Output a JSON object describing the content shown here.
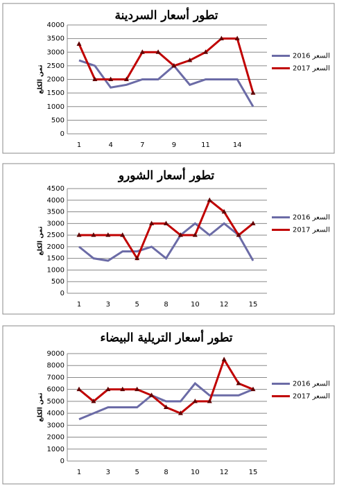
{
  "chart_data": [
    {
      "type": "line",
      "title": "تطور أسعار السردينة",
      "y_label": "ثمن الكلغ",
      "categories": [
        "1",
        null,
        "4",
        null,
        "7",
        null,
        "9",
        null,
        "11",
        null,
        "14",
        null
      ],
      "ylim": [
        0,
        4000
      ],
      "yticks": [
        0,
        500,
        1000,
        1500,
        2000,
        2500,
        3000,
        3500,
        4000
      ],
      "grid": true,
      "series": [
        {
          "name": "السعر 2016",
          "color": "#6b6ba6",
          "values": [
            2700,
            2500,
            1700,
            1800,
            2000,
            2000,
            2500,
            1800,
            2000,
            2000,
            2000,
            1000
          ]
        },
        {
          "name": "السعر 2017",
          "color": "#c00000",
          "values": [
            3300,
            2000,
            2000,
            2000,
            3000,
            3000,
            2500,
            2700,
            3000,
            3500,
            3500,
            1500
          ]
        }
      ]
    },
    {
      "type": "line",
      "title": "تطور أسعار الشورو",
      "y_label": "ثمن الكلغ",
      "categories": [
        "1",
        null,
        "3",
        null,
        "5",
        null,
        "8",
        null,
        "10",
        null,
        "12",
        null,
        "15"
      ],
      "ylim": [
        0,
        4500
      ],
      "yticks": [
        0,
        500,
        1000,
        1500,
        2000,
        2500,
        3000,
        3500,
        4000,
        4500
      ],
      "grid": true,
      "series": [
        {
          "name": "السعر 2016",
          "color": "#6b6ba6",
          "values": [
            2000,
            1500,
            1400,
            1800,
            1800,
            2000,
            1500,
            2500,
            3000,
            2500,
            3000,
            2500,
            1400
          ]
        },
        {
          "name": "السعر 2017",
          "color": "#c00000",
          "values": [
            2500,
            2500,
            2500,
            2500,
            1500,
            3000,
            3000,
            2500,
            2500,
            4000,
            3500,
            2500,
            3000
          ]
        }
      ]
    },
    {
      "type": "line",
      "title": "تطور أسعار التريلية البيضاء",
      "y_label": "ثمن الكلغ",
      "categories": [
        "1",
        null,
        "3",
        null,
        "5",
        null,
        "8",
        null,
        "10",
        null,
        "12",
        null,
        "15"
      ],
      "ylim": [
        0,
        9000
      ],
      "yticks": [
        0,
        1000,
        2000,
        3000,
        4000,
        5000,
        6000,
        7000,
        8000,
        9000
      ],
      "grid": true,
      "series": [
        {
          "name": "السعر 2016",
          "color": "#6b6ba6",
          "values": [
            3500,
            4000,
            4500,
            4500,
            4500,
            5500,
            5000,
            5000,
            6500,
            5500,
            5500,
            5500,
            6000
          ]
        },
        {
          "name": "السعر 2017",
          "color": "#c00000",
          "values": [
            6000,
            5000,
            6000,
            6000,
            6000,
            5500,
            4500,
            4000,
            5000,
            5000,
            8500,
            6500,
            6000
          ]
        }
      ]
    }
  ]
}
